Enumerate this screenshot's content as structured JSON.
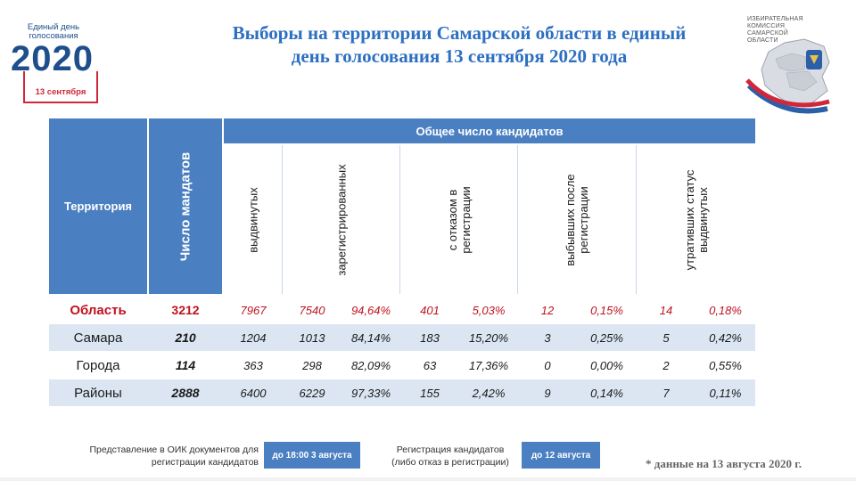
{
  "logo": {
    "line1": "Единый день",
    "line2": "голосования",
    "year": "2020",
    "date": "13 сентября"
  },
  "title": {
    "line1": "Выборы на территории Самарской области в единый",
    "line2": "день голосования 13 сентября 2020 года"
  },
  "emblem": {
    "line1": "ИЗБИРАТЕЛЬНАЯ",
    "line2": "КОМИССИЯ",
    "line3": "САМАРСКОЙ",
    "line4": "ОБЛАСТИ"
  },
  "table": {
    "header_territory": "Территория",
    "header_mandates": "Число мандатов",
    "header_group": "Общее число кандидатов",
    "sub_headers": [
      "выдвинутых",
      "зарегистрированных",
      "с отказом в\nрегистрации",
      "выбывших после\nрегистрации",
      "утративших статус\nвыдвинутых"
    ],
    "rows": [
      {
        "name": "Область",
        "mandates": "3212",
        "nominated": "7967",
        "registered": "7540",
        "registered_pct": "94,64%",
        "refused": "401",
        "refused_pct": "5,03%",
        "dropped": "12",
        "dropped_pct": "0,15%",
        "lost": "14",
        "lost_pct": "0,18%"
      },
      {
        "name": "Самара",
        "mandates": "210",
        "nominated": "1204",
        "registered": "1013",
        "registered_pct": "84,14%",
        "refused": "183",
        "refused_pct": "15,20%",
        "dropped": "3",
        "dropped_pct": "0,25%",
        "lost": "5",
        "lost_pct": "0,42%"
      },
      {
        "name": "Города",
        "mandates": "114",
        "nominated": "363",
        "registered": "298",
        "registered_pct": "82,09%",
        "refused": "63",
        "refused_pct": "17,36%",
        "dropped": "0",
        "dropped_pct": "0,00%",
        "lost": "2",
        "lost_pct": "0,55%"
      },
      {
        "name": "Районы",
        "mandates": "2888",
        "nominated": "6400",
        "registered": "6229",
        "registered_pct": "97,33%",
        "refused": "155",
        "refused_pct": "2,42%",
        "dropped": "9",
        "dropped_pct": "0,14%",
        "lost": "7",
        "lost_pct": "0,11%"
      }
    ]
  },
  "footer": {
    "doc_label_line1": "Представление в ОИК документов для",
    "doc_label_line2": "регистрации кандидатов",
    "doc_deadline": "до 18:00 3 августа",
    "reg_label_line1": "Регистрация кандидатов",
    "reg_label_line2": "(либо отказ в регистрации)",
    "reg_deadline": "до 12 августа",
    "note": "*  данные на 13 августа 2020 г."
  },
  "colors": {
    "header_blue": "#4a7fc1",
    "row_stripe": "#dce6f3",
    "title_blue": "#2d6fc1",
    "highlight_red": "#c0121f"
  }
}
